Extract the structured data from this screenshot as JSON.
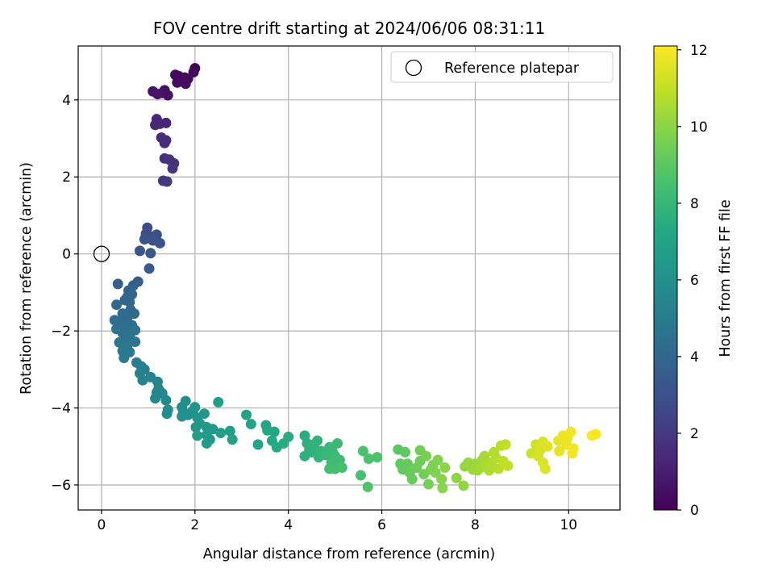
{
  "chart_data": {
    "type": "scatter",
    "title": "FOV centre drift starting at 2024/06/06 08:31:11",
    "xlabel": "Angular distance from reference (arcmin)",
    "ylabel": "Rotation from reference (arcmin)",
    "xlim": [
      -0.5,
      11.1
    ],
    "ylim": [
      -6.65,
      5.4
    ],
    "xticks": [
      0,
      2,
      4,
      6,
      8,
      10
    ],
    "yticks": [
      -6,
      -4,
      -2,
      0,
      2,
      4
    ],
    "xtick_labels": [
      "0",
      "2",
      "4",
      "6",
      "8",
      "10"
    ],
    "ytick_labels": [
      "−6",
      "−4",
      "−2",
      "0",
      "2",
      "4"
    ],
    "grid": true,
    "legend": {
      "position": "top-right",
      "label": "Reference platepar"
    },
    "reference_point": {
      "x": 0,
      "y": 0
    },
    "colorbar": {
      "label": "Hours from first FF file",
      "range": [
        0,
        12.1
      ],
      "ticks": [
        0,
        2,
        4,
        6,
        8,
        10,
        12
      ],
      "tick_labels": [
        "0",
        "2",
        "4",
        "6",
        "8",
        "10",
        "12"
      ],
      "colormap": "viridis"
    },
    "points": [
      {
        "x": 2.0,
        "y": 4.82,
        "c": 0.05
      },
      {
        "x": 1.97,
        "y": 4.72,
        "c": 0.1
      },
      {
        "x": 1.85,
        "y": 4.55,
        "c": 0.15
      },
      {
        "x": 1.78,
        "y": 4.58,
        "c": 0.2
      },
      {
        "x": 1.65,
        "y": 4.62,
        "c": 0.25
      },
      {
        "x": 1.58,
        "y": 4.65,
        "c": 0.3
      },
      {
        "x": 1.62,
        "y": 4.45,
        "c": 0.35
      },
      {
        "x": 1.8,
        "y": 4.42,
        "c": 0.4
      },
      {
        "x": 1.35,
        "y": 4.25,
        "c": 0.5
      },
      {
        "x": 1.42,
        "y": 4.12,
        "c": 0.55
      },
      {
        "x": 1.3,
        "y": 4.18,
        "c": 0.6
      },
      {
        "x": 1.1,
        "y": 4.22,
        "c": 0.65
      },
      {
        "x": 1.2,
        "y": 4.15,
        "c": 0.7
      },
      {
        "x": 1.18,
        "y": 3.5,
        "c": 1.2
      },
      {
        "x": 1.25,
        "y": 3.38,
        "c": 1.25
      },
      {
        "x": 1.38,
        "y": 3.4,
        "c": 1.3
      },
      {
        "x": 1.15,
        "y": 3.35,
        "c": 1.35
      },
      {
        "x": 1.28,
        "y": 3.02,
        "c": 1.45
      },
      {
        "x": 1.35,
        "y": 2.88,
        "c": 1.5
      },
      {
        "x": 1.38,
        "y": 2.95,
        "c": 1.55
      },
      {
        "x": 1.35,
        "y": 2.48,
        "c": 1.65
      },
      {
        "x": 1.45,
        "y": 2.45,
        "c": 1.7
      },
      {
        "x": 1.55,
        "y": 2.35,
        "c": 1.75
      },
      {
        "x": 1.52,
        "y": 2.22,
        "c": 1.8
      },
      {
        "x": 1.32,
        "y": 1.9,
        "c": 1.9
      },
      {
        "x": 1.4,
        "y": 1.88,
        "c": 1.95
      },
      {
        "x": 0.98,
        "y": 0.68,
        "c": 2.8
      },
      {
        "x": 0.95,
        "y": 0.52,
        "c": 2.85
      },
      {
        "x": 1.05,
        "y": 0.45,
        "c": 2.9
      },
      {
        "x": 1.18,
        "y": 0.5,
        "c": 2.95
      },
      {
        "x": 0.92,
        "y": 0.38,
        "c": 3.0
      },
      {
        "x": 1.1,
        "y": 0.35,
        "c": 3.05
      },
      {
        "x": 1.25,
        "y": 0.28,
        "c": 3.1
      },
      {
        "x": 0.82,
        "y": 0.08,
        "c": 3.2
      },
      {
        "x": 1.05,
        "y": 0.02,
        "c": 3.25
      },
      {
        "x": 1.02,
        "y": -0.38,
        "c": 3.35
      },
      {
        "x": 0.78,
        "y": -0.72,
        "c": 3.6
      },
      {
        "x": 0.68,
        "y": -0.82,
        "c": 3.65
      },
      {
        "x": 0.35,
        "y": -0.78,
        "c": 3.7
      },
      {
        "x": 0.58,
        "y": -0.95,
        "c": 3.75
      },
      {
        "x": 0.65,
        "y": -1.05,
        "c": 3.8
      },
      {
        "x": 0.55,
        "y": -1.12,
        "c": 3.85
      },
      {
        "x": 0.6,
        "y": -1.25,
        "c": 3.9
      },
      {
        "x": 0.5,
        "y": -1.2,
        "c": 3.95
      },
      {
        "x": 0.32,
        "y": -1.32,
        "c": 4.0
      },
      {
        "x": 0.62,
        "y": -1.45,
        "c": 4.05
      },
      {
        "x": 0.7,
        "y": -1.55,
        "c": 4.1
      },
      {
        "x": 0.45,
        "y": -1.55,
        "c": 4.15
      },
      {
        "x": 0.55,
        "y": -1.65,
        "c": 4.2
      },
      {
        "x": 0.28,
        "y": -1.72,
        "c": 4.25
      },
      {
        "x": 0.4,
        "y": -1.78,
        "c": 4.3
      },
      {
        "x": 0.65,
        "y": -1.85,
        "c": 4.35
      },
      {
        "x": 0.52,
        "y": -1.9,
        "c": 4.4
      },
      {
        "x": 0.32,
        "y": -1.95,
        "c": 4.45
      },
      {
        "x": 0.45,
        "y": -2.05,
        "c": 4.5
      },
      {
        "x": 0.72,
        "y": -1.98,
        "c": 4.55
      },
      {
        "x": 0.6,
        "y": -2.12,
        "c": 4.6
      },
      {
        "x": 0.5,
        "y": -2.25,
        "c": 4.65
      },
      {
        "x": 0.38,
        "y": -2.3,
        "c": 4.7
      },
      {
        "x": 0.72,
        "y": -2.28,
        "c": 4.75
      },
      {
        "x": 0.55,
        "y": -2.4,
        "c": 4.8
      },
      {
        "x": 0.45,
        "y": -2.52,
        "c": 4.85
      },
      {
        "x": 0.6,
        "y": -2.55,
        "c": 4.9
      },
      {
        "x": 0.48,
        "y": -2.7,
        "c": 4.95
      },
      {
        "x": 0.75,
        "y": -2.82,
        "c": 5.1
      },
      {
        "x": 0.85,
        "y": -2.92,
        "c": 5.15
      },
      {
        "x": 0.92,
        "y": -3.0,
        "c": 5.2
      },
      {
        "x": 0.82,
        "y": -3.1,
        "c": 5.25
      },
      {
        "x": 0.88,
        "y": -3.28,
        "c": 5.3
      },
      {
        "x": 1.05,
        "y": -3.2,
        "c": 5.35
      },
      {
        "x": 1.2,
        "y": -3.32,
        "c": 5.4
      },
      {
        "x": 1.22,
        "y": -3.5,
        "c": 5.45
      },
      {
        "x": 1.18,
        "y": -3.6,
        "c": 5.5
      },
      {
        "x": 1.3,
        "y": -3.62,
        "c": 5.55
      },
      {
        "x": 1.15,
        "y": -3.75,
        "c": 5.6
      },
      {
        "x": 1.38,
        "y": -3.8,
        "c": 5.65
      },
      {
        "x": 1.42,
        "y": -4.05,
        "c": 5.75
      },
      {
        "x": 1.4,
        "y": -4.15,
        "c": 5.8
      },
      {
        "x": 1.72,
        "y": -3.98,
        "c": 5.9
      },
      {
        "x": 1.8,
        "y": -3.82,
        "c": 5.95
      },
      {
        "x": 1.75,
        "y": -4.1,
        "c": 6.0
      },
      {
        "x": 1.85,
        "y": -4.18,
        "c": 6.05
      },
      {
        "x": 1.72,
        "y": -4.22,
        "c": 6.1
      },
      {
        "x": 1.95,
        "y": -4.08,
        "c": 6.15
      },
      {
        "x": 2.0,
        "y": -3.98,
        "c": 6.2
      },
      {
        "x": 2.05,
        "y": -4.25,
        "c": 6.25
      },
      {
        "x": 2.1,
        "y": -4.4,
        "c": 6.3
      },
      {
        "x": 2.02,
        "y": -4.5,
        "c": 6.35
      },
      {
        "x": 2.2,
        "y": -4.15,
        "c": 6.4
      },
      {
        "x": 2.25,
        "y": -4.5,
        "c": 6.45
      },
      {
        "x": 2.38,
        "y": -4.55,
        "c": 6.5
      },
      {
        "x": 2.25,
        "y": -4.7,
        "c": 6.55
      },
      {
        "x": 2.32,
        "y": -4.82,
        "c": 6.6
      },
      {
        "x": 2.25,
        "y": -4.92,
        "c": 6.65
      },
      {
        "x": 2.05,
        "y": -4.72,
        "c": 6.7
      },
      {
        "x": 2.5,
        "y": -3.85,
        "c": 6.75
      },
      {
        "x": 2.55,
        "y": -4.65,
        "c": 6.8
      },
      {
        "x": 2.75,
        "y": -4.6,
        "c": 6.85
      },
      {
        "x": 2.8,
        "y": -4.82,
        "c": 6.9
      },
      {
        "x": 3.1,
        "y": -4.18,
        "c": 7.0
      },
      {
        "x": 3.2,
        "y": -4.42,
        "c": 7.05
      },
      {
        "x": 3.35,
        "y": -4.95,
        "c": 7.1
      },
      {
        "x": 3.52,
        "y": -4.45,
        "c": 7.15
      },
      {
        "x": 3.55,
        "y": -4.58,
        "c": 7.2
      },
      {
        "x": 3.7,
        "y": -4.62,
        "c": 7.25
      },
      {
        "x": 3.65,
        "y": -4.85,
        "c": 7.3
      },
      {
        "x": 3.75,
        "y": -5.02,
        "c": 7.35
      },
      {
        "x": 3.9,
        "y": -4.92,
        "c": 7.4
      },
      {
        "x": 4.0,
        "y": -4.75,
        "c": 7.45
      },
      {
        "x": 4.35,
        "y": -4.72,
        "c": 7.55
      },
      {
        "x": 4.4,
        "y": -4.92,
        "c": 7.6
      },
      {
        "x": 4.45,
        "y": -5.08,
        "c": 7.65
      },
      {
        "x": 4.35,
        "y": -5.25,
        "c": 7.7
      },
      {
        "x": 4.5,
        "y": -5.15,
        "c": 7.75
      },
      {
        "x": 4.55,
        "y": -4.95,
        "c": 7.8
      },
      {
        "x": 4.62,
        "y": -4.85,
        "c": 7.85
      },
      {
        "x": 4.7,
        "y": -5.12,
        "c": 7.9
      },
      {
        "x": 4.65,
        "y": -5.28,
        "c": 7.95
      },
      {
        "x": 4.8,
        "y": -5.22,
        "c": 8.0
      },
      {
        "x": 4.88,
        "y": -5.02,
        "c": 8.05
      },
      {
        "x": 4.95,
        "y": -5.15,
        "c": 8.1
      },
      {
        "x": 5.05,
        "y": -4.92,
        "c": 8.15
      },
      {
        "x": 5.0,
        "y": -5.25,
        "c": 8.2
      },
      {
        "x": 4.92,
        "y": -5.42,
        "c": 8.25
      },
      {
        "x": 5.1,
        "y": -5.35,
        "c": 8.3
      },
      {
        "x": 5.0,
        "y": -5.58,
        "c": 8.35
      },
      {
        "x": 4.88,
        "y": -5.58,
        "c": 8.4
      },
      {
        "x": 5.15,
        "y": -5.55,
        "c": 8.45
      },
      {
        "x": 5.55,
        "y": -5.75,
        "c": 8.55
      },
      {
        "x": 5.6,
        "y": -5.12,
        "c": 8.6
      },
      {
        "x": 5.72,
        "y": -5.32,
        "c": 8.65
      },
      {
        "x": 5.9,
        "y": -5.28,
        "c": 8.7
      },
      {
        "x": 5.7,
        "y": -6.05,
        "c": 8.75
      },
      {
        "x": 6.35,
        "y": -5.08,
        "c": 9.0
      },
      {
        "x": 6.5,
        "y": -5.15,
        "c": 9.05
      },
      {
        "x": 6.4,
        "y": -5.45,
        "c": 9.1
      },
      {
        "x": 6.45,
        "y": -5.6,
        "c": 9.15
      },
      {
        "x": 6.55,
        "y": -5.45,
        "c": 9.2
      },
      {
        "x": 6.6,
        "y": -5.68,
        "c": 9.25
      },
      {
        "x": 6.65,
        "y": -5.85,
        "c": 9.3
      },
      {
        "x": 6.75,
        "y": -5.55,
        "c": 9.35
      },
      {
        "x": 6.82,
        "y": -5.38,
        "c": 9.4
      },
      {
        "x": 6.82,
        "y": -5.1,
        "c": 9.45
      },
      {
        "x": 6.9,
        "y": -5.72,
        "c": 9.5
      },
      {
        "x": 6.95,
        "y": -5.25,
        "c": 9.55
      },
      {
        "x": 7.0,
        "y": -5.98,
        "c": 9.6
      },
      {
        "x": 7.05,
        "y": -5.6,
        "c": 9.65
      },
      {
        "x": 7.1,
        "y": -5.48,
        "c": 9.7
      },
      {
        "x": 7.15,
        "y": -5.68,
        "c": 9.75
      },
      {
        "x": 7.2,
        "y": -5.35,
        "c": 9.8
      },
      {
        "x": 7.28,
        "y": -5.85,
        "c": 9.85
      },
      {
        "x": 7.3,
        "y": -6.08,
        "c": 9.9
      },
      {
        "x": 7.35,
        "y": -5.55,
        "c": 9.95
      },
      {
        "x": 7.6,
        "y": -5.82,
        "c": 10.05
      },
      {
        "x": 7.75,
        "y": -6.02,
        "c": 10.1
      },
      {
        "x": 7.78,
        "y": -5.52,
        "c": 10.15
      },
      {
        "x": 7.85,
        "y": -5.42,
        "c": 10.2
      },
      {
        "x": 7.95,
        "y": -5.6,
        "c": 10.25
      },
      {
        "x": 8.0,
        "y": -5.45,
        "c": 10.3
      },
      {
        "x": 8.05,
        "y": -5.62,
        "c": 10.35
      },
      {
        "x": 8.15,
        "y": -5.35,
        "c": 10.4
      },
      {
        "x": 8.12,
        "y": -5.55,
        "c": 10.45
      },
      {
        "x": 8.2,
        "y": -5.25,
        "c": 10.5
      },
      {
        "x": 8.25,
        "y": -5.5,
        "c": 10.55
      },
      {
        "x": 8.3,
        "y": -5.62,
        "c": 10.6
      },
      {
        "x": 8.35,
        "y": -5.42,
        "c": 10.65
      },
      {
        "x": 8.4,
        "y": -5.15,
        "c": 10.7
      },
      {
        "x": 8.45,
        "y": -5.3,
        "c": 10.75
      },
      {
        "x": 8.5,
        "y": -5.58,
        "c": 10.8
      },
      {
        "x": 8.55,
        "y": -4.98,
        "c": 10.85
      },
      {
        "x": 8.6,
        "y": -5.38,
        "c": 10.9
      },
      {
        "x": 8.65,
        "y": -4.95,
        "c": 10.95
      },
      {
        "x": 8.7,
        "y": -5.5,
        "c": 11.0
      },
      {
        "x": 9.2,
        "y": -5.18,
        "c": 11.2
      },
      {
        "x": 9.3,
        "y": -4.95,
        "c": 11.25
      },
      {
        "x": 9.35,
        "y": -5.25,
        "c": 11.3
      },
      {
        "x": 9.4,
        "y": -5.08,
        "c": 11.35
      },
      {
        "x": 9.45,
        "y": -4.88,
        "c": 11.4
      },
      {
        "x": 9.45,
        "y": -5.42,
        "c": 11.45
      },
      {
        "x": 9.5,
        "y": -5.58,
        "c": 11.5
      },
      {
        "x": 9.55,
        "y": -5.0,
        "c": 11.55
      },
      {
        "x": 9.8,
        "y": -5.12,
        "c": 11.65
      },
      {
        "x": 9.78,
        "y": -4.85,
        "c": 11.7
      },
      {
        "x": 9.88,
        "y": -4.72,
        "c": 11.75
      },
      {
        "x": 9.95,
        "y": -4.95,
        "c": 11.8
      },
      {
        "x": 9.98,
        "y": -4.78,
        "c": 11.85
      },
      {
        "x": 10.05,
        "y": -4.62,
        "c": 11.9
      },
      {
        "x": 10.1,
        "y": -5.05,
        "c": 11.92
      },
      {
        "x": 10.08,
        "y": -5.18,
        "c": 11.95
      },
      {
        "x": 10.5,
        "y": -4.72,
        "c": 12.05
      },
      {
        "x": 10.58,
        "y": -4.68,
        "c": 12.1
      }
    ]
  }
}
